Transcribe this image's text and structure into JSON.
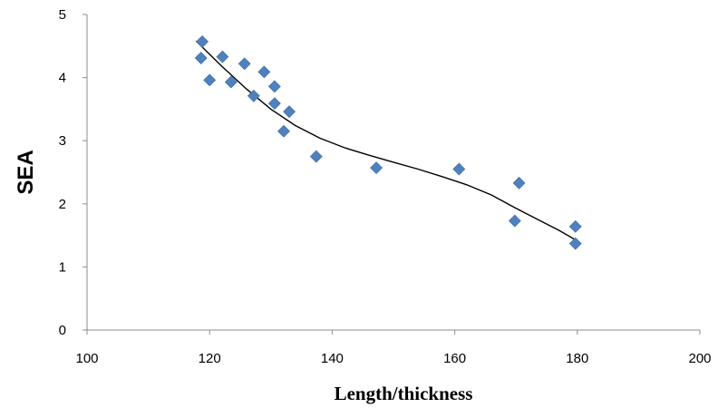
{
  "chart_data": {
    "type": "scatter",
    "xlabel": "Length/thickness",
    "ylabel": "SEA",
    "xlim": [
      100,
      200
    ],
    "ylim": [
      0,
      5
    ],
    "x_ticks": [
      100,
      120,
      140,
      160,
      180,
      200
    ],
    "y_ticks": [
      0,
      1,
      2,
      3,
      4,
      5
    ],
    "grid": false,
    "legend": "none",
    "marker": "diamond",
    "point_color": "#4f81bd",
    "trendline_color": "#000000",
    "series": [
      {
        "points": [
          [
            118.8,
            4.57
          ],
          [
            118.6,
            4.31
          ],
          [
            120.0,
            3.96
          ],
          [
            122.1,
            4.33
          ],
          [
            123.5,
            3.93
          ],
          [
            125.7,
            4.22
          ],
          [
            127.2,
            3.71
          ],
          [
            128.9,
            4.09
          ],
          [
            130.6,
            3.86
          ],
          [
            130.6,
            3.59
          ],
          [
            132.1,
            3.15
          ],
          [
            133.0,
            3.46
          ],
          [
            137.4,
            2.75
          ],
          [
            147.2,
            2.57
          ],
          [
            160.7,
            2.55
          ],
          [
            169.8,
            1.73
          ],
          [
            170.5,
            2.33
          ],
          [
            179.7,
            1.64
          ],
          [
            179.7,
            1.37
          ]
        ]
      }
    ],
    "trendline": {
      "type": "polynomial",
      "x_range": [
        117.8,
        179.7
      ],
      "points": [
        [
          117.8,
          4.58
        ],
        [
          122,
          4.18
        ],
        [
          126,
          3.82
        ],
        [
          130,
          3.5
        ],
        [
          134,
          3.24
        ],
        [
          138,
          3.04
        ],
        [
          142,
          2.89
        ],
        [
          146,
          2.77
        ],
        [
          150,
          2.66
        ],
        [
          154,
          2.55
        ],
        [
          158,
          2.43
        ],
        [
          162,
          2.3
        ],
        [
          166,
          2.14
        ],
        [
          170,
          1.93
        ],
        [
          174,
          1.73
        ],
        [
          177,
          1.58
        ],
        [
          179.7,
          1.43
        ]
      ]
    }
  }
}
